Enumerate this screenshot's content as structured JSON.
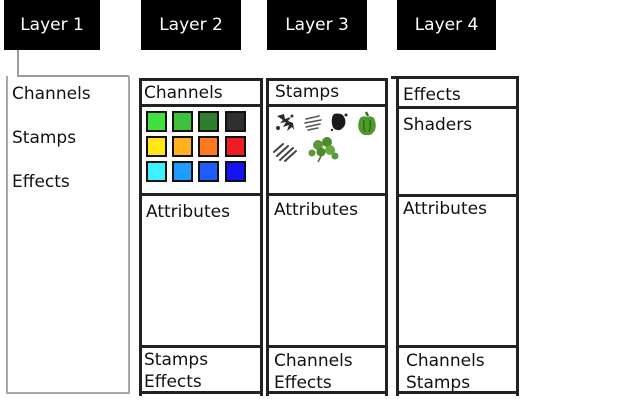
{
  "tabs": [
    "Layer 1",
    "Layer 2",
    "Layer 3",
    "Layer 4"
  ],
  "layer1": {
    "items": [
      "Channels",
      "Stamps",
      "Effects"
    ]
  },
  "layer2": {
    "header": "Channels",
    "swatches": [
      "#3fe03f",
      "#3ec23e",
      "#2f7d2f",
      "#2f2f2f",
      "#ffe619",
      "#ffb21e",
      "#ff7a1e",
      "#ee1c24",
      "#3ff0ff",
      "#1e9cff",
      "#1e5cff",
      "#1414f0"
    ],
    "section": "Attributes",
    "footer": [
      "Stamps",
      "Effects"
    ]
  },
  "layer3": {
    "header": "Stamps",
    "stamps": [
      "splatter-stamp",
      "brush-stamp",
      "ink-stamp",
      "pepper-stamp",
      "stripe-stamp",
      "clover-stamp"
    ],
    "section": "Attributes",
    "footer": [
      "Channels",
      "Effects"
    ]
  },
  "layer4": {
    "header": "Effects",
    "subheader": "Shaders",
    "section": "Attributes",
    "footer": [
      "Channels",
      "Stamps"
    ]
  }
}
